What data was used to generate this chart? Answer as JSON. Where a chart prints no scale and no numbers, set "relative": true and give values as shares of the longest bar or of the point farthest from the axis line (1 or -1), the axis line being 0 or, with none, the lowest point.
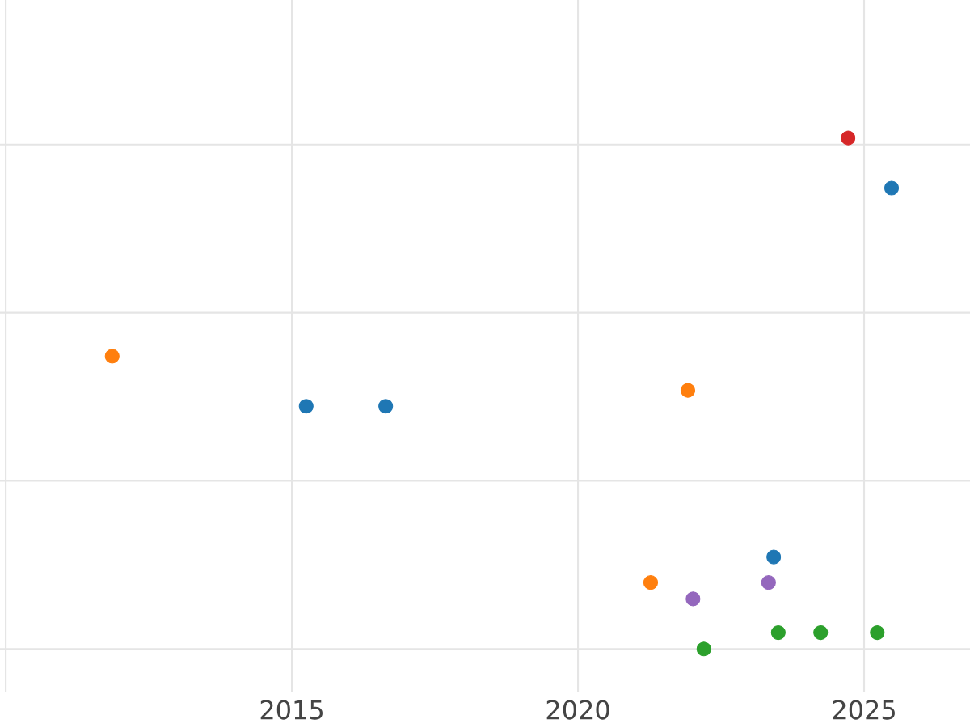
{
  "chart_data": {
    "type": "scatter",
    "relative": true,
    "marker": "circle",
    "grid": true,
    "tick_labels": "x",
    "xlim": [
      2009.9,
      2026.85
    ],
    "xticks": [
      {
        "value": 2010,
        "label": null
      },
      2015,
      2020,
      2025
    ],
    "series": [
      {
        "color": "#ff7f0e",
        "x": [
          2011.86,
          2021.92,
          2021.27
        ],
        "values": [
          0.573,
          0.506,
          0.13
        ]
      },
      {
        "color": "#1f77b4",
        "x": [
          2015.25,
          2016.64,
          2025.48,
          2023.42
        ],
        "values": [
          0.475,
          0.475,
          0.902,
          0.18
        ]
      },
      {
        "color": "#d62728",
        "x": [
          2024.72
        ],
        "values": [
          1
        ]
      },
      {
        "color": "#9467bd",
        "x": [
          2022.01,
          2023.33
        ],
        "values": [
          0.098,
          0.13
        ]
      },
      {
        "color": "#2ca02c",
        "x": [
          2022.2,
          2023.5,
          2024.24,
          2025.23
        ],
        "values": [
          0,
          0.032,
          0.032,
          0.032
        ]
      }
    ]
  }
}
